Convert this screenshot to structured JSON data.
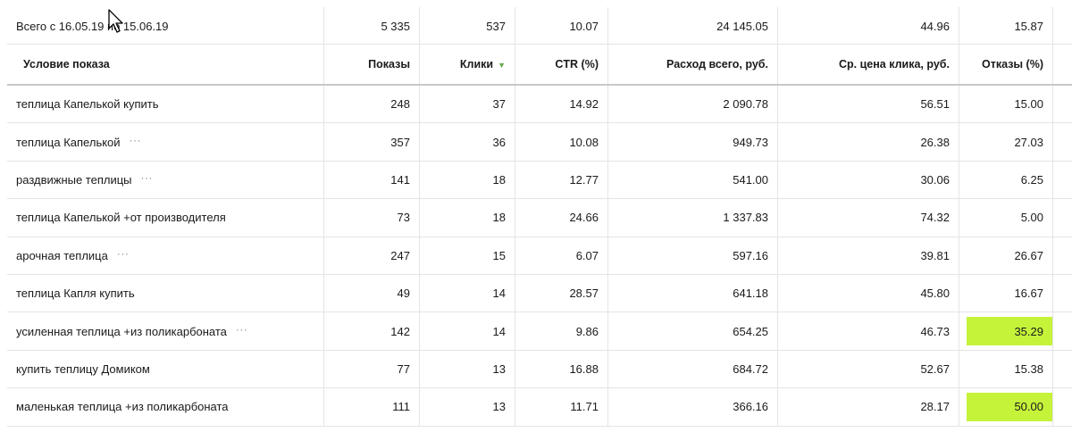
{
  "total": {
    "label": "Всего с 16.05.19 по 15.06.19",
    "shows": "5 335",
    "clicks": "537",
    "ctr": "10.07",
    "cost": "24 145.05",
    "avg_cpc": "44.96",
    "bounce": "15.87"
  },
  "headers": {
    "condition": "Условие показа",
    "shows": "Показы",
    "clicks": "Клики",
    "ctr": "CTR (%)",
    "cost": "Расход всего, руб.",
    "avg_cpc": "Ср. цена клика, руб.",
    "bounce": "Отказы (%)"
  },
  "sort_indicator": "▼",
  "more_glyph": "···",
  "highlight_color": "#c5f33a",
  "rows": [
    {
      "condition": "теплица Капелькой купить",
      "shows": "248",
      "clicks": "37",
      "ctr": "14.92",
      "cost": "2 090.78",
      "avg_cpc": "56.51",
      "bounce": "15.00"
    },
    {
      "condition": "теплица Капелькой",
      "shows": "357",
      "clicks": "36",
      "ctr": "10.08",
      "cost": "949.73",
      "avg_cpc": "26.38",
      "bounce": "27.03"
    },
    {
      "condition": "раздвижные теплицы",
      "shows": "141",
      "clicks": "18",
      "ctr": "12.77",
      "cost": "541.00",
      "avg_cpc": "30.06",
      "bounce": "6.25"
    },
    {
      "condition": "теплица Капелькой +от производителя",
      "shows": "73",
      "clicks": "18",
      "ctr": "24.66",
      "cost": "1 337.83",
      "avg_cpc": "74.32",
      "bounce": "5.00"
    },
    {
      "condition": "арочная теплица",
      "shows": "247",
      "clicks": "15",
      "ctr": "6.07",
      "cost": "597.16",
      "avg_cpc": "39.81",
      "bounce": "26.67"
    },
    {
      "condition": "теплица Капля купить",
      "shows": "49",
      "clicks": "14",
      "ctr": "28.57",
      "cost": "641.18",
      "avg_cpc": "45.80",
      "bounce": "16.67"
    },
    {
      "condition": "усиленная теплица +из поликарбоната",
      "shows": "142",
      "clicks": "14",
      "ctr": "9.86",
      "cost": "654.25",
      "avg_cpc": "46.73",
      "bounce": "35.29"
    },
    {
      "condition": "купить теплицу Домиком",
      "shows": "77",
      "clicks": "13",
      "ctr": "16.88",
      "cost": "684.72",
      "avg_cpc": "52.67",
      "bounce": "15.38"
    },
    {
      "condition": "маленькая теплица +из поликарбоната",
      "shows": "111",
      "clicks": "13",
      "ctr": "11.71",
      "cost": "366.16",
      "avg_cpc": "28.17",
      "bounce": "50.00"
    }
  ]
}
